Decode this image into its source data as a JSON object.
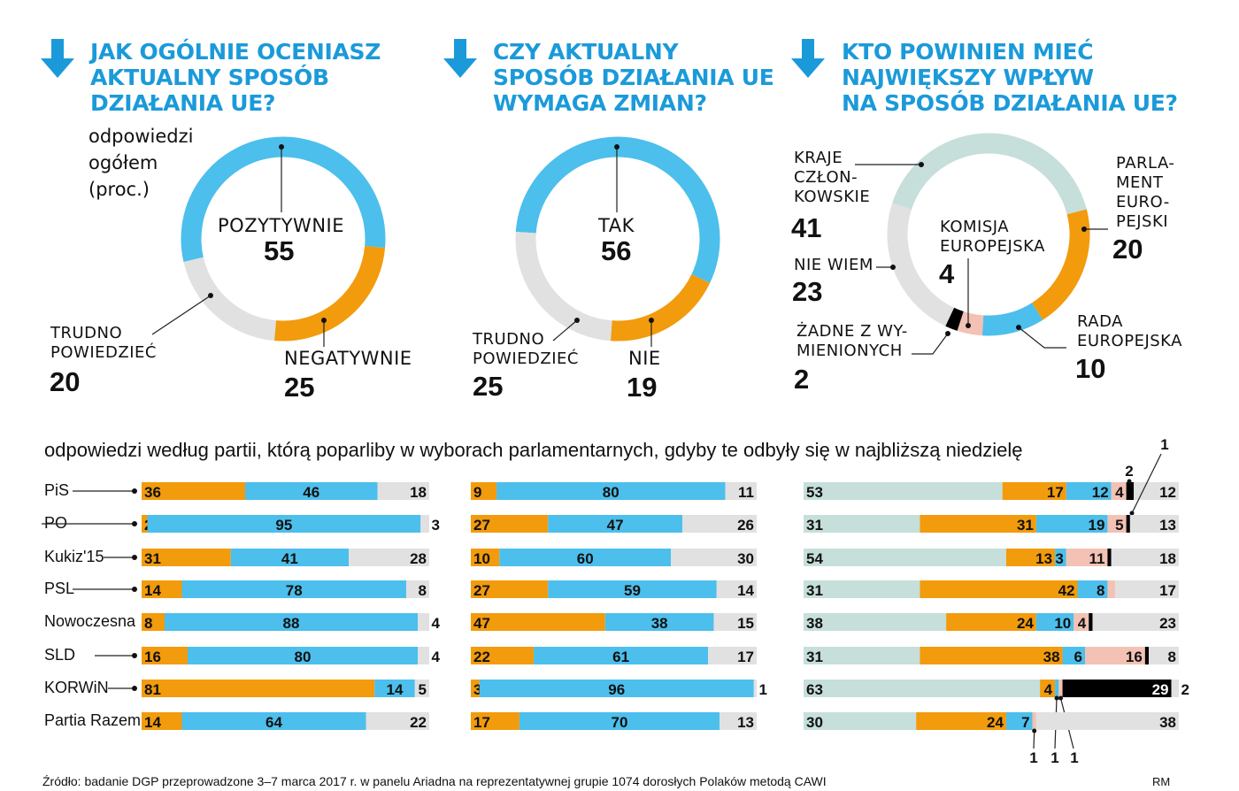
{
  "headers": [
    "JAK OGÓLNIE OCENIASZ\nAKTUALNY SPOSÓB\nDZIAŁANIA UE?",
    "CZY AKTUALNY\nSPOSÓB DZIAŁANIA UE\nWYMAGA ZMIAN?",
    "KTO POWINIEN MIEĆ\nNAJWIĘKSZY WPŁYW\nNA SPOSÓB DZIAŁANIA UE?"
  ],
  "overall_note": "odpowiedzi\nogółem\n(proc.)",
  "party_subtitle": "odpowiedzi według partii, którą poparliby w wyborach parlamentarnych, gdyby te odbyły się w najbliższą niedzielę",
  "source": "Źródło: badanie DGP przeprowadzone 3–7 marca 2017 r. w panelu Ariadna na reprezentatywnej grupie 1074 dorosłych Polaków metodą CAWI",
  "credit": "RM",
  "parties": [
    "PiS",
    "PO",
    "Kukiz'15",
    "PSL",
    "Nowoczesna",
    "SLD",
    "KORWiN",
    "Partia Razem"
  ],
  "colors": {
    "title": "#1b9ad9",
    "blue": "#4cbfec",
    "orange": "#f29b0c",
    "gray": "#e1e1e1",
    "teal": "#c6dfda",
    "pink": "#f3c2b4",
    "black": "#000000"
  },
  "icons": {
    "header_arrow": "arrow-down-icon"
  },
  "chart_data": [
    {
      "type": "pie",
      "variant": "donut",
      "unit": "proc.",
      "slices": [
        {
          "label": "POZYTYWNIE",
          "value": 55,
          "color": "#4cbfec"
        },
        {
          "label": "NEGATYWNIE",
          "value": 25,
          "color": "#f29b0c"
        },
        {
          "label": "TRUDNO\nPOWIEDZIEĆ",
          "value": 20,
          "color": "#e1e1e1"
        }
      ]
    },
    {
      "type": "pie",
      "variant": "donut",
      "unit": "proc.",
      "slices": [
        {
          "label": "TAK",
          "value": 56,
          "color": "#4cbfec"
        },
        {
          "label": "NIE",
          "value": 19,
          "color": "#f29b0c"
        },
        {
          "label": "TRUDNO\nPOWIEDZIEĆ",
          "value": 25,
          "color": "#e1e1e1"
        }
      ]
    },
    {
      "type": "pie",
      "variant": "donut",
      "unit": "proc.",
      "slices": [
        {
          "label": "KRAJE\nCZŁON-\nKOWSKIE",
          "value": 41,
          "color": "#c6dfda"
        },
        {
          "label": "PARLA-\nMENT\nEURO-\nPEJSKI",
          "value": 20,
          "color": "#f29b0c"
        },
        {
          "label": "RADA\nEUROPEJSKA",
          "value": 10,
          "color": "#4cbfec"
        },
        {
          "label": "KOMISJA\nEUROPEJSKA",
          "value": 4,
          "color": "#f3c2b4"
        },
        {
          "label": "ŻADNE Z WY-\nMIENIONYCH",
          "value": 2,
          "color": "#000000"
        },
        {
          "label": "NIE WIEM",
          "value": 23,
          "color": "#e1e1e1"
        }
      ]
    },
    {
      "type": "bar",
      "orientation": "horizontal",
      "stacked": true,
      "categories": [
        "PiS",
        "PO",
        "Kukiz'15",
        "PSL",
        "Nowoczesna",
        "SLD",
        "KORWiN",
        "Partia Razem"
      ],
      "series": [
        {
          "name": "NEGATYWNIE",
          "color": "#f29b0c",
          "values": [
            36,
            2,
            31,
            14,
            8,
            16,
            81,
            14
          ]
        },
        {
          "name": "POZYTYWNIE",
          "color": "#4cbfec",
          "values": [
            46,
            95,
            41,
            78,
            88,
            80,
            14,
            64
          ]
        },
        {
          "name": "TRUDNO POWIEDZIEĆ",
          "color": "#e1e1e1",
          "values": [
            18,
            3,
            28,
            8,
            4,
            4,
            5,
            22
          ]
        }
      ]
    },
    {
      "type": "bar",
      "orientation": "horizontal",
      "stacked": true,
      "categories": [
        "PiS",
        "PO",
        "Kukiz'15",
        "PSL",
        "Nowoczesna",
        "SLD",
        "KORWiN",
        "Partia Razem"
      ],
      "series": [
        {
          "name": "NIE",
          "color": "#f29b0c",
          "values": [
            9,
            27,
            10,
            27,
            47,
            22,
            3,
            17
          ]
        },
        {
          "name": "TAK",
          "color": "#4cbfec",
          "values": [
            80,
            47,
            60,
            59,
            38,
            61,
            96,
            70
          ]
        },
        {
          "name": "TRUDNO POWIEDZIEĆ",
          "color": "#e1e1e1",
          "values": [
            11,
            26,
            30,
            14,
            15,
            17,
            1,
            13
          ]
        }
      ]
    },
    {
      "type": "bar",
      "orientation": "horizontal",
      "stacked": true,
      "categories": [
        "PiS",
        "PO",
        "Kukiz'15",
        "PSL",
        "Nowoczesna",
        "SLD",
        "KORWiN",
        "Partia Razem"
      ],
      "series": [
        {
          "name": "KRAJE CZŁONKOWSKIE",
          "color": "#c6dfda",
          "values": [
            53,
            31,
            54,
            31,
            38,
            31,
            63,
            30
          ]
        },
        {
          "name": "PARLAMENT EUROPEJSKI",
          "color": "#f29b0c",
          "values": [
            17,
            31,
            13,
            42,
            24,
            38,
            4,
            24
          ]
        },
        {
          "name": "RADA EUROPEJSKA",
          "color": "#4cbfec",
          "values": [
            12,
            19,
            3,
            8,
            10,
            6,
            1,
            7
          ]
        },
        {
          "name": "KOMISJA EUROPEJSKA",
          "color": "#f3c2b4",
          "values": [
            4,
            5,
            11,
            2,
            4,
            16,
            1,
            1
          ]
        },
        {
          "name": "ŻADNE Z WYMIENIONYCH",
          "color": "#000000",
          "values": [
            2,
            1,
            1,
            0,
            1,
            1,
            29,
            0
          ]
        },
        {
          "name": "NIE WIEM",
          "color": "#e1e1e1",
          "values": [
            12,
            13,
            18,
            17,
            23,
            8,
            2,
            38
          ]
        }
      ]
    }
  ]
}
